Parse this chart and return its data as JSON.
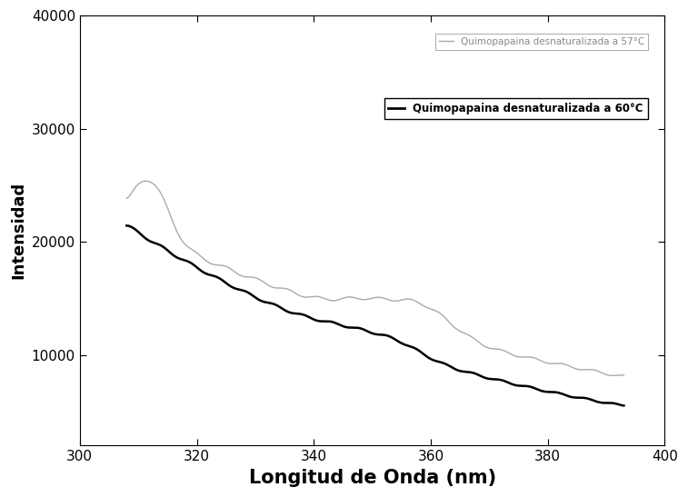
{
  "xlabel": "Longitud de Onda (nm)",
  "ylabel": "Intensidad",
  "xlim": [
    300,
    400
  ],
  "ylim": [
    2000,
    40000
  ],
  "xticks": [
    300,
    320,
    340,
    360,
    380,
    400
  ],
  "yticks": [
    10000,
    20000,
    30000,
    40000
  ],
  "legend1_label": "Quimopapaina desnaturalizada a 57°C",
  "legend2_label": "Quimopapaina desnaturalizada a 60°C",
  "color_57": "#aaaaaa",
  "color_60": "#000000",
  "background": "#ffffff",
  "xlabel_fontsize": 15,
  "ylabel_fontsize": 13
}
